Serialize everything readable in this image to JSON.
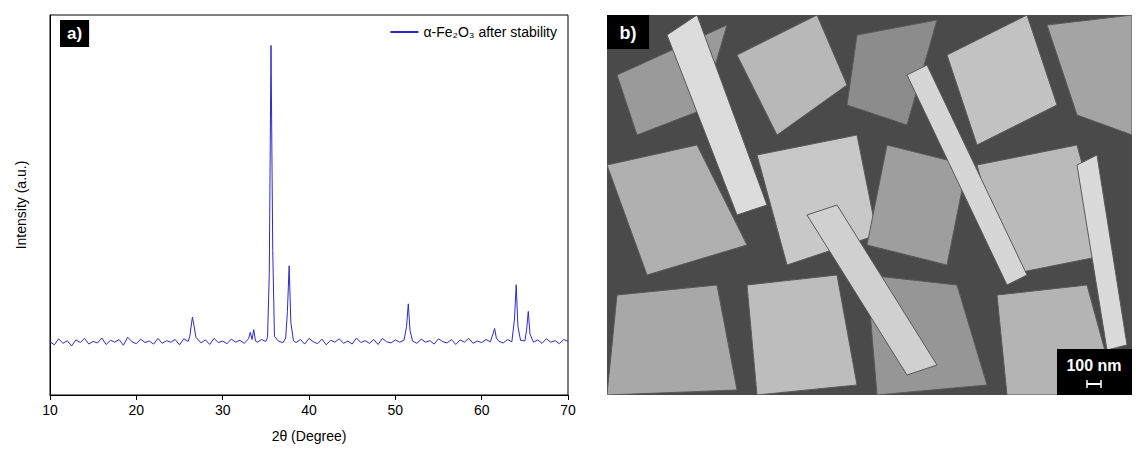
{
  "chart_data": {
    "type": "line",
    "panel_label": "a)",
    "x_label": "2θ (Degree)",
    "y_label": "Intensity (a.u.)",
    "x": [
      10,
      10.5,
      11,
      11.5,
      12,
      12.5,
      13,
      13.5,
      14,
      14.5,
      15,
      15.5,
      16,
      16.5,
      17,
      17.5,
      18,
      18.5,
      19,
      19.5,
      20,
      20.5,
      21,
      21.5,
      22,
      22.5,
      23,
      23.5,
      24,
      24.5,
      25,
      25.5,
      26,
      26.2,
      26.4,
      26.5,
      26.7,
      26.9,
      27.5,
      28,
      28.5,
      29,
      29.5,
      30,
      30.5,
      31,
      31.5,
      32,
      32.5,
      33,
      33.2,
      33.4,
      33.6,
      33.8,
      34,
      34.5,
      35,
      35.2,
      35.4,
      35.6,
      35.8,
      36,
      36.5,
      37,
      37.3,
      37.5,
      37.7,
      37.9,
      38.2,
      38.5,
      39,
      39.5,
      40,
      40.5,
      41,
      41.5,
      42,
      42.5,
      43,
      43.5,
      44,
      44.5,
      45,
      45.5,
      46,
      46.5,
      47,
      47.5,
      48,
      48.5,
      49,
      49.5,
      50,
      50.5,
      51,
      51.3,
      51.5,
      51.7,
      52,
      52.5,
      53,
      53.5,
      54,
      54.5,
      55,
      55.5,
      56,
      56.5,
      57,
      57.5,
      58,
      58.5,
      59,
      59.5,
      60,
      60.5,
      61,
      61.3,
      61.5,
      61.7,
      62,
      62.5,
      63,
      63.5,
      63.8,
      64,
      64.2,
      64.5,
      65,
      65.2,
      65.4,
      65.6,
      66,
      66.5,
      67,
      67.5,
      68,
      68.5,
      69,
      69.5,
      70
    ],
    "series": [
      {
        "name": "α-Fe₂O₃ after stability",
        "color": "#2a2ad0",
        "values": [
          14,
          13.2,
          14.8,
          13.6,
          14.3,
          12.9,
          14.5,
          13.8,
          14.9,
          13.4,
          14.1,
          13.7,
          15,
          13.3,
          14.4,
          13.9,
          14.6,
          13.1,
          15.2,
          14,
          13.5,
          14.7,
          13.8,
          14.2,
          13.4,
          14.9,
          13.6,
          14.3,
          13.9,
          14.6,
          13.2,
          14.8,
          14.1,
          15.5,
          19,
          20.5,
          18,
          15.2,
          13.7,
          14.5,
          13.3,
          14.9,
          13.8,
          14.2,
          13.5,
          14.7,
          13.9,
          14.4,
          13.6,
          14.8,
          16.5,
          14.6,
          17.2,
          14.2,
          13.9,
          14.6,
          14.1,
          15.2,
          32,
          92,
          38,
          15.4,
          14.1,
          13.8,
          15,
          22,
          34,
          19,
          14.3,
          13.8,
          14.6,
          13.4,
          14.9,
          14,
          13.5,
          14.7,
          13.2,
          14.4,
          13.9,
          14.8,
          13.6,
          14.2,
          13.4,
          15,
          13.8,
          14.3,
          13.6,
          14.6,
          13.3,
          14.9,
          14,
          13.7,
          14.5,
          13.9,
          14.4,
          18,
          24,
          17,
          14.2,
          13.6,
          14.7,
          13.9,
          14.3,
          13.4,
          14.8,
          14,
          13.7,
          14.6,
          13.3,
          14.5,
          13.9,
          14.9,
          13.6,
          14.2,
          13.8,
          14.6,
          14,
          16,
          17.5,
          15,
          14.1,
          13.7,
          14.6,
          14,
          20,
          29,
          18,
          14.4,
          14.2,
          17,
          22,
          16,
          13.9,
          14.5,
          13.6,
          14.8,
          13.9,
          14.3,
          13.5,
          14.6,
          14.1
        ]
      }
    ],
    "xlim": [
      10,
      70
    ],
    "xticks": [
      10,
      20,
      30,
      40,
      50,
      60,
      70
    ],
    "ylim": [
      0,
      100
    ],
    "tick_labels": "x",
    "grid": false,
    "legend": "upper right"
  },
  "image_panel": {
    "panel_label": "b)",
    "scale_bar": "100 nm"
  }
}
